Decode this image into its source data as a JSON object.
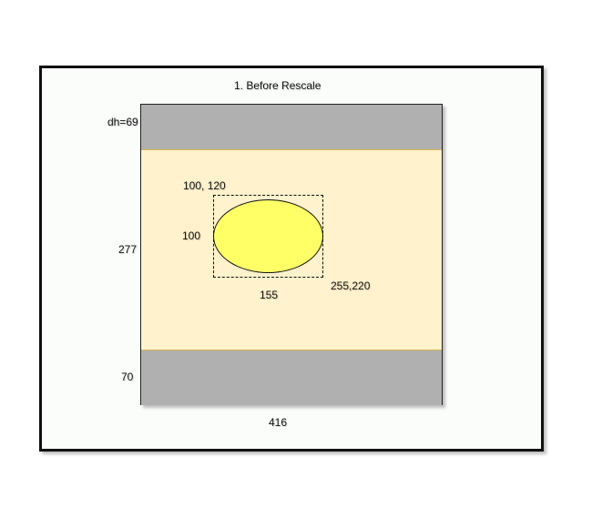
{
  "diagram": {
    "title": "1. Before Rescale",
    "labels": {
      "top_band_height": "dh=69",
      "middle_band_height": "277",
      "bottom_band_height": "70",
      "width": "416",
      "box_top_left": "100, 120",
      "box_height": "100",
      "box_width": "155",
      "box_bottom_right": "255,220"
    },
    "colors": {
      "band_gray": "#b0b0b0",
      "middle_fill": "#fff2cc",
      "ellipse_fill": "#ffff66",
      "frame_border": "#111111"
    }
  }
}
